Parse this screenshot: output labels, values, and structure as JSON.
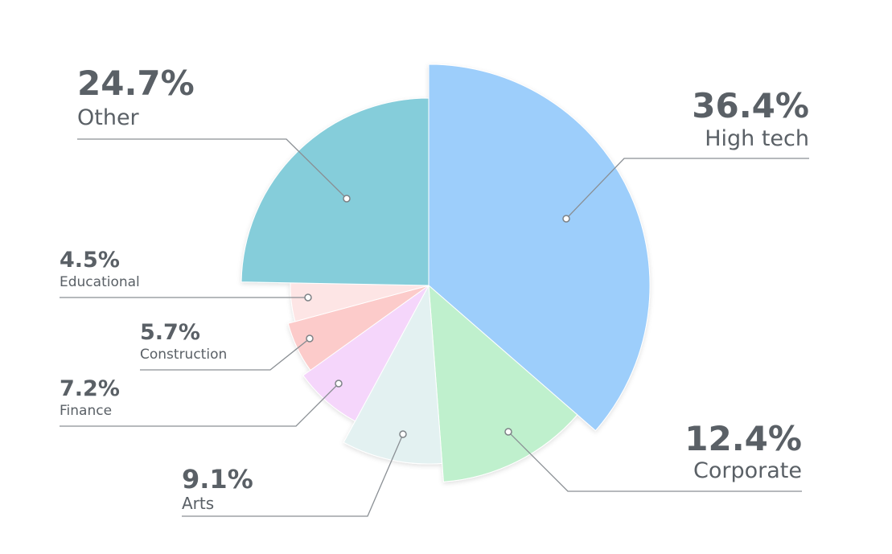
{
  "chart_data": {
    "type": "pie",
    "title": "",
    "slices": [
      {
        "label": "High tech",
        "value": 36.4,
        "value_label": "36.4%",
        "color": "#9dcefb"
      },
      {
        "label": "Corporate",
        "value": 12.4,
        "value_label": "12.4%",
        "color": "#bff0cd"
      },
      {
        "label": "Arts",
        "value": 9.1,
        "value_label": "9.1%",
        "color": "#e3f1f1"
      },
      {
        "label": "Finance",
        "value": 7.2,
        "value_label": "7.2%",
        "color": "#f5d6fb"
      },
      {
        "label": "Construction",
        "value": 5.7,
        "value_label": "5.7%",
        "color": "#fccbca"
      },
      {
        "label": "Educational",
        "value": 4.5,
        "value_label": "4.5%",
        "color": "#fde5e5"
      },
      {
        "label": "Other",
        "value": 24.7,
        "value_label": "24.7%",
        "color": "#85cdda"
      }
    ],
    "legend": "none",
    "style": "variable-radius pie with leader-line callouts"
  }
}
